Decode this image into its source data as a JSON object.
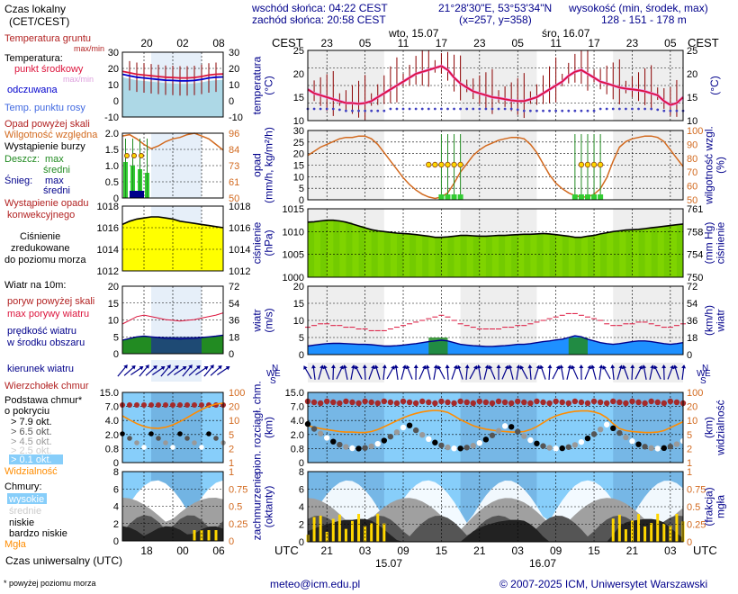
{
  "header": {
    "sunrise": "wschód słońca: 04:22 CEST",
    "sunset": "zachód słońca: 20:58 CEST",
    "coords": "21°28'30\"E, 53°53'34\"N",
    "grid": "(x=257,  y=358)",
    "elev_title": "wysokość (min, środek, max)",
    "elev_values": "128 - 151 - 178 m"
  },
  "footer": {
    "email": "meteo@icm.edu.pl",
    "copyright": "© 2007-2025 ICM, Uniwersytet Warszawski",
    "footnote": "* powyżej poziomu morza",
    "utc_label": "Czas uniwersalny (UTC)"
  },
  "legend": {
    "time_local": "Czas lokalny",
    "time_local_sub": "(CET/CEST)",
    "local_ticks": [
      "20",
      "02",
      "08"
    ],
    "utc_ticks": [
      "18",
      "00",
      "06"
    ],
    "temp": {
      "ground": "Temperatura gruntu",
      "ground_sub": "max/min",
      "title": "Temperatura:",
      "mid": "punkt środkowy",
      "max_min": "max/min",
      "felt": "odczuwana",
      "dew": "Temp. punktu rosy",
      "ticks_left": [
        "30",
        "20",
        "10",
        "0",
        "-10"
      ],
      "ticks_right": [
        "30",
        "20",
        "10",
        "0",
        "-10"
      ]
    },
    "precip": {
      "above": "Opad powyżej skali",
      "humidity": "Wilgotność względna",
      "storm": "Wystąpienie burzy",
      "rain": "Deszcz:",
      "rain_max": "max",
      "rain_avg": "średni",
      "snow": "Śnieg:",
      "snow_max": "max",
      "snow_avg": "średni",
      "occ1": "Wystąpienie opadu",
      "occ2": "konwekcyjnego",
      "ticks_left": [
        "2.0",
        "1.5",
        "1.0",
        "0.5",
        "0"
      ],
      "ticks_right": [
        "96",
        "84",
        "73",
        "61",
        "50"
      ]
    },
    "pressure": {
      "l1": "Ciśnienie",
      "l2": "zredukowane",
      "l3": "do poziomu morza",
      "ticks_left": [
        "1018",
        "1016",
        "1014",
        "1012"
      ],
      "ticks_right": [
        "1018",
        "1016",
        "1014",
        "1012"
      ]
    },
    "wind": {
      "title": "Wiatr na 10m:",
      "gust_above": "poryw powyżej skali",
      "gust_max": "max porywy wiatru",
      "speed": "prędkość wiatru",
      "speed_sub": "w środku obszaru",
      "ticks_left": [
        "20",
        "15",
        "10",
        "5",
        "0"
      ],
      "ticks_right": [
        "72",
        "54",
        "36",
        "18",
        "0"
      ],
      "direction": "kierunek wiatru"
    },
    "cloudbase": {
      "top": "Wierzchołek chmur",
      "base": "Podstawa chmur*",
      "cover": "o pokryciu",
      "o1": "> 7.9 okt.",
      "o2": "> 6.5 okt.",
      "o3": "> 4.5 okt.",
      "o4": "> 2.5 okt.",
      "o5": "> 0.1 okt.",
      "vis": "Widzialność",
      "ticks_left": [
        "15.0",
        "7.0",
        "4.0",
        "2.0",
        "0.8",
        "0"
      ],
      "ticks_right": [
        "100",
        "20",
        "10",
        "5",
        "2",
        "1"
      ]
    },
    "clouds": {
      "title": "Chmury:",
      "high": "wysokie",
      "mid": "średnie",
      "low": "niskie",
      "vlow": "bardzo niskie",
      "fog": "Mgła",
      "ticks_left": [
        "8",
        "6",
        "4",
        "2",
        "0"
      ],
      "ticks_right": [
        "1",
        "0.75",
        "0.5",
        "0.25",
        "0"
      ]
    }
  },
  "main": {
    "cest": "CEST",
    "utc": "UTC",
    "day1": "wto, 15.07",
    "day2": "śro, 16.07",
    "date1": "15.07",
    "date2": "16.07",
    "local_hours": [
      "23",
      "05",
      "11",
      "17",
      "23",
      "05",
      "11",
      "17",
      "23",
      "05"
    ],
    "utc_hours": [
      "21",
      "03",
      "09",
      "15",
      "21",
      "03",
      "09",
      "15",
      "21",
      "03"
    ],
    "temp": {
      "ylabel": "temperatura\n(°C)",
      "ylabel_r": "(°C)",
      "ticks": [
        "25",
        "20",
        "15",
        "10"
      ]
    },
    "precip": {
      "ylabel": "opad\n(mm/h, kg/m²/h)",
      "ylabel_r": "wilgotność wzgl.\n(%)",
      "ticks_left": [
        "30",
        "25",
        "20",
        "15",
        "10",
        "5",
        "0"
      ],
      "ticks_right": [
        "100",
        "90",
        "80",
        "70",
        "60",
        "50"
      ]
    },
    "pressure": {
      "ylabel": "ciśnienie\n(hPa)",
      "ylabel_r": "(mm Hg)\nciśnienie",
      "ticks_left": [
        "1015",
        "1010",
        "1005",
        "1000"
      ],
      "ticks_right": [
        "761",
        "758",
        "754",
        "750"
      ]
    },
    "wind": {
      "ylabel": "wiatr\n(m/s)",
      "ylabel_r": "(km/h)\nwiatr",
      "ticks_left": [
        "20",
        "15",
        "10",
        "5",
        "0"
      ],
      "ticks_right": [
        "72",
        "54",
        "36",
        "18",
        "0"
      ]
    },
    "winddir": {
      "n": "N",
      "w": "W",
      "e": "E",
      "s": "S"
    },
    "cloudbase": {
      "ylabel": "pion. rozciągł. chm.\n(km)",
      "ylabel_r": "(km)\nwidzialność",
      "ticks_left": [
        "15.0",
        "7.0",
        "4.0",
        "2.0",
        "0.8",
        "0"
      ],
      "ticks_right": [
        "100",
        "20",
        "10",
        "5",
        "2",
        "1"
      ]
    },
    "clouds": {
      "ylabel": "zachmurzenie\n(oktanty)",
      "ylabel_r": "(frakcja)\nmgła",
      "ticks_left": [
        "8",
        "6",
        "4",
        "2",
        "0"
      ],
      "ticks_right": [
        "1",
        "0.75",
        "0.5",
        "0.25",
        "0"
      ]
    }
  },
  "chart_data": {
    "type": "line",
    "x_hours_utc": [
      18,
      19,
      20,
      21,
      22,
      23,
      0,
      1,
      2,
      3,
      4,
      5,
      6,
      7,
      8,
      9,
      10,
      11,
      12,
      13,
      14,
      15,
      16,
      17,
      18,
      19,
      20,
      21,
      22,
      23,
      0,
      1,
      2,
      3,
      4,
      5,
      6,
      7,
      8,
      9,
      10,
      11,
      12,
      13,
      14,
      15,
      16,
      17,
      18,
      19,
      20,
      21,
      22,
      23,
      0,
      1,
      2,
      3,
      4,
      5
    ],
    "temperature_c": [
      18,
      17,
      16.5,
      16,
      15.5,
      15,
      14.5,
      14.5,
      14.3,
      14.5,
      15,
      16,
      17,
      18,
      19,
      20,
      21,
      22,
      22.5,
      23,
      23.5,
      24,
      23,
      21,
      19.5,
      18.5,
      17.5,
      17,
      16.5,
      16,
      15.8,
      15.5,
      15.2,
      15,
      15,
      15.5,
      16,
      17,
      18,
      19,
      20,
      21.5,
      22.5,
      23,
      22,
      21,
      20,
      19.5,
      19,
      18.5,
      18.2,
      18,
      17.8,
      17.5,
      17,
      16.5,
      15,
      14,
      14.5,
      16
    ],
    "dewpoint_c": [
      13,
      13,
      13,
      13,
      13,
      12.8,
      12.5,
      12.5,
      12.5,
      12.5,
      12.5,
      12.5,
      12.5,
      13,
      13,
      13,
      13,
      13,
      13,
      13,
      13,
      13,
      13,
      13,
      13,
      13,
      13,
      13,
      13,
      13,
      13,
      13,
      13,
      12.8,
      12.5,
      12.5,
      12.5,
      12.5,
      12.5,
      12.5,
      12.5,
      12.5,
      12.5,
      12.5,
      12.5,
      12.5,
      13,
      13,
      13,
      13,
      13,
      13,
      13,
      13,
      13,
      12.8,
      12.5,
      12.5,
      12.5,
      12.5
    ],
    "humidity_pct": [
      82,
      85,
      88,
      90,
      92,
      94,
      95,
      95,
      96,
      96,
      94,
      90,
      84,
      78,
      72,
      66,
      61,
      57,
      54,
      52,
      51,
      52,
      55,
      62,
      70,
      76,
      82,
      86,
      89,
      91,
      93,
      94,
      95,
      95,
      94,
      90,
      84,
      76,
      68,
      62,
      58,
      55,
      53,
      52,
      52,
      54,
      58,
      66,
      78,
      88,
      92,
      94,
      95,
      96,
      96,
      95,
      92,
      86,
      80,
      74
    ],
    "pressure_hpa": [
      1011.5,
      1011.6,
      1011.8,
      1012,
      1012,
      1011.8,
      1011.5,
      1011,
      1010.5,
      1010,
      1009.5,
      1009.2,
      1009,
      1008.8,
      1008.6,
      1008.5,
      1008.4,
      1008.2,
      1008,
      1007.8,
      1007.5,
      1007.5,
      1007.6,
      1007.8,
      1008,
      1008,
      1007.9,
      1007.8,
      1007.8,
      1007.9,
      1008,
      1008,
      1008.1,
      1008.2,
      1008.3,
      1008.3,
      1008.4,
      1008.5,
      1008.4,
      1008.2,
      1008,
      1007.8,
      1007.5,
      1007.5,
      1007.8,
      1008,
      1008.4,
      1008.7,
      1009,
      1009.2,
      1009.4,
      1009.5,
      1009.6,
      1009.8,
      1010,
      1010.2,
      1010.4,
      1010.6,
      1010.8,
      1011
    ],
    "wind_ms": [
      2.5,
      2.8,
      3,
      3.2,
      3.3,
      3.3,
      3.2,
      3.1,
      3,
      3,
      2.9,
      2.7,
      2.5,
      2.5,
      2.6,
      2.8,
      3,
      3.2,
      3.5,
      3.8,
      4,
      4.2,
      4,
      3.5,
      3,
      2.8,
      2.6,
      2.5,
      2.4,
      2.4,
      2.5,
      2.6,
      2.8,
      3,
      3,
      3.2,
      3.5,
      3.8,
      4,
      4.3,
      4.5,
      5,
      5.5,
      5.2,
      4.5,
      4,
      3.5,
      3.2,
      3,
      3.2,
      3.5,
      3.8,
      4,
      4,
      3.8,
      3.5,
      3.2,
      3,
      3.2,
      3.5
    ],
    "gust_ms": [
      8,
      8.5,
      9,
      9,
      8.5,
      8.5,
      8,
      8,
      7.5,
      7.5,
      7,
      7,
      7,
      7.5,
      8,
      8.5,
      9,
      9.5,
      10,
      10.5,
      11,
      11.5,
      11,
      10,
      9,
      8.5,
      8,
      7.5,
      7.5,
      7.5,
      7.5,
      8,
      8,
      8.5,
      8.5,
      9,
      9.5,
      10,
      10.5,
      11,
      11.5,
      12,
      12,
      11.5,
      11,
      10.5,
      10,
      9,
      8.5,
      8.5,
      9,
      9,
      9.5,
      9.5,
      9,
      8.5,
      8,
      8,
      8.5,
      9
    ],
    "local_panel": {
      "temperature_c": [
        19,
        18,
        17,
        16.5,
        16,
        15.5,
        15,
        14.8,
        14.5,
        14.5,
        14.8,
        15.5,
        16.5,
        17,
        17.2
      ],
      "pressure_hpa": [
        1016.3,
        1016.6,
        1016.8,
        1016.9,
        1017,
        1017,
        1016.9,
        1016.8,
        1016.6,
        1016.5,
        1016.4,
        1016.3,
        1016.2,
        1016.1,
        1016
      ],
      "wind_ms": [
        4,
        4.5,
        5,
        5.2,
        5,
        4.8,
        4.6,
        4.5,
        4.4,
        4.5,
        4.6,
        4.8,
        5,
        5.2,
        5.5
      ]
    }
  }
}
